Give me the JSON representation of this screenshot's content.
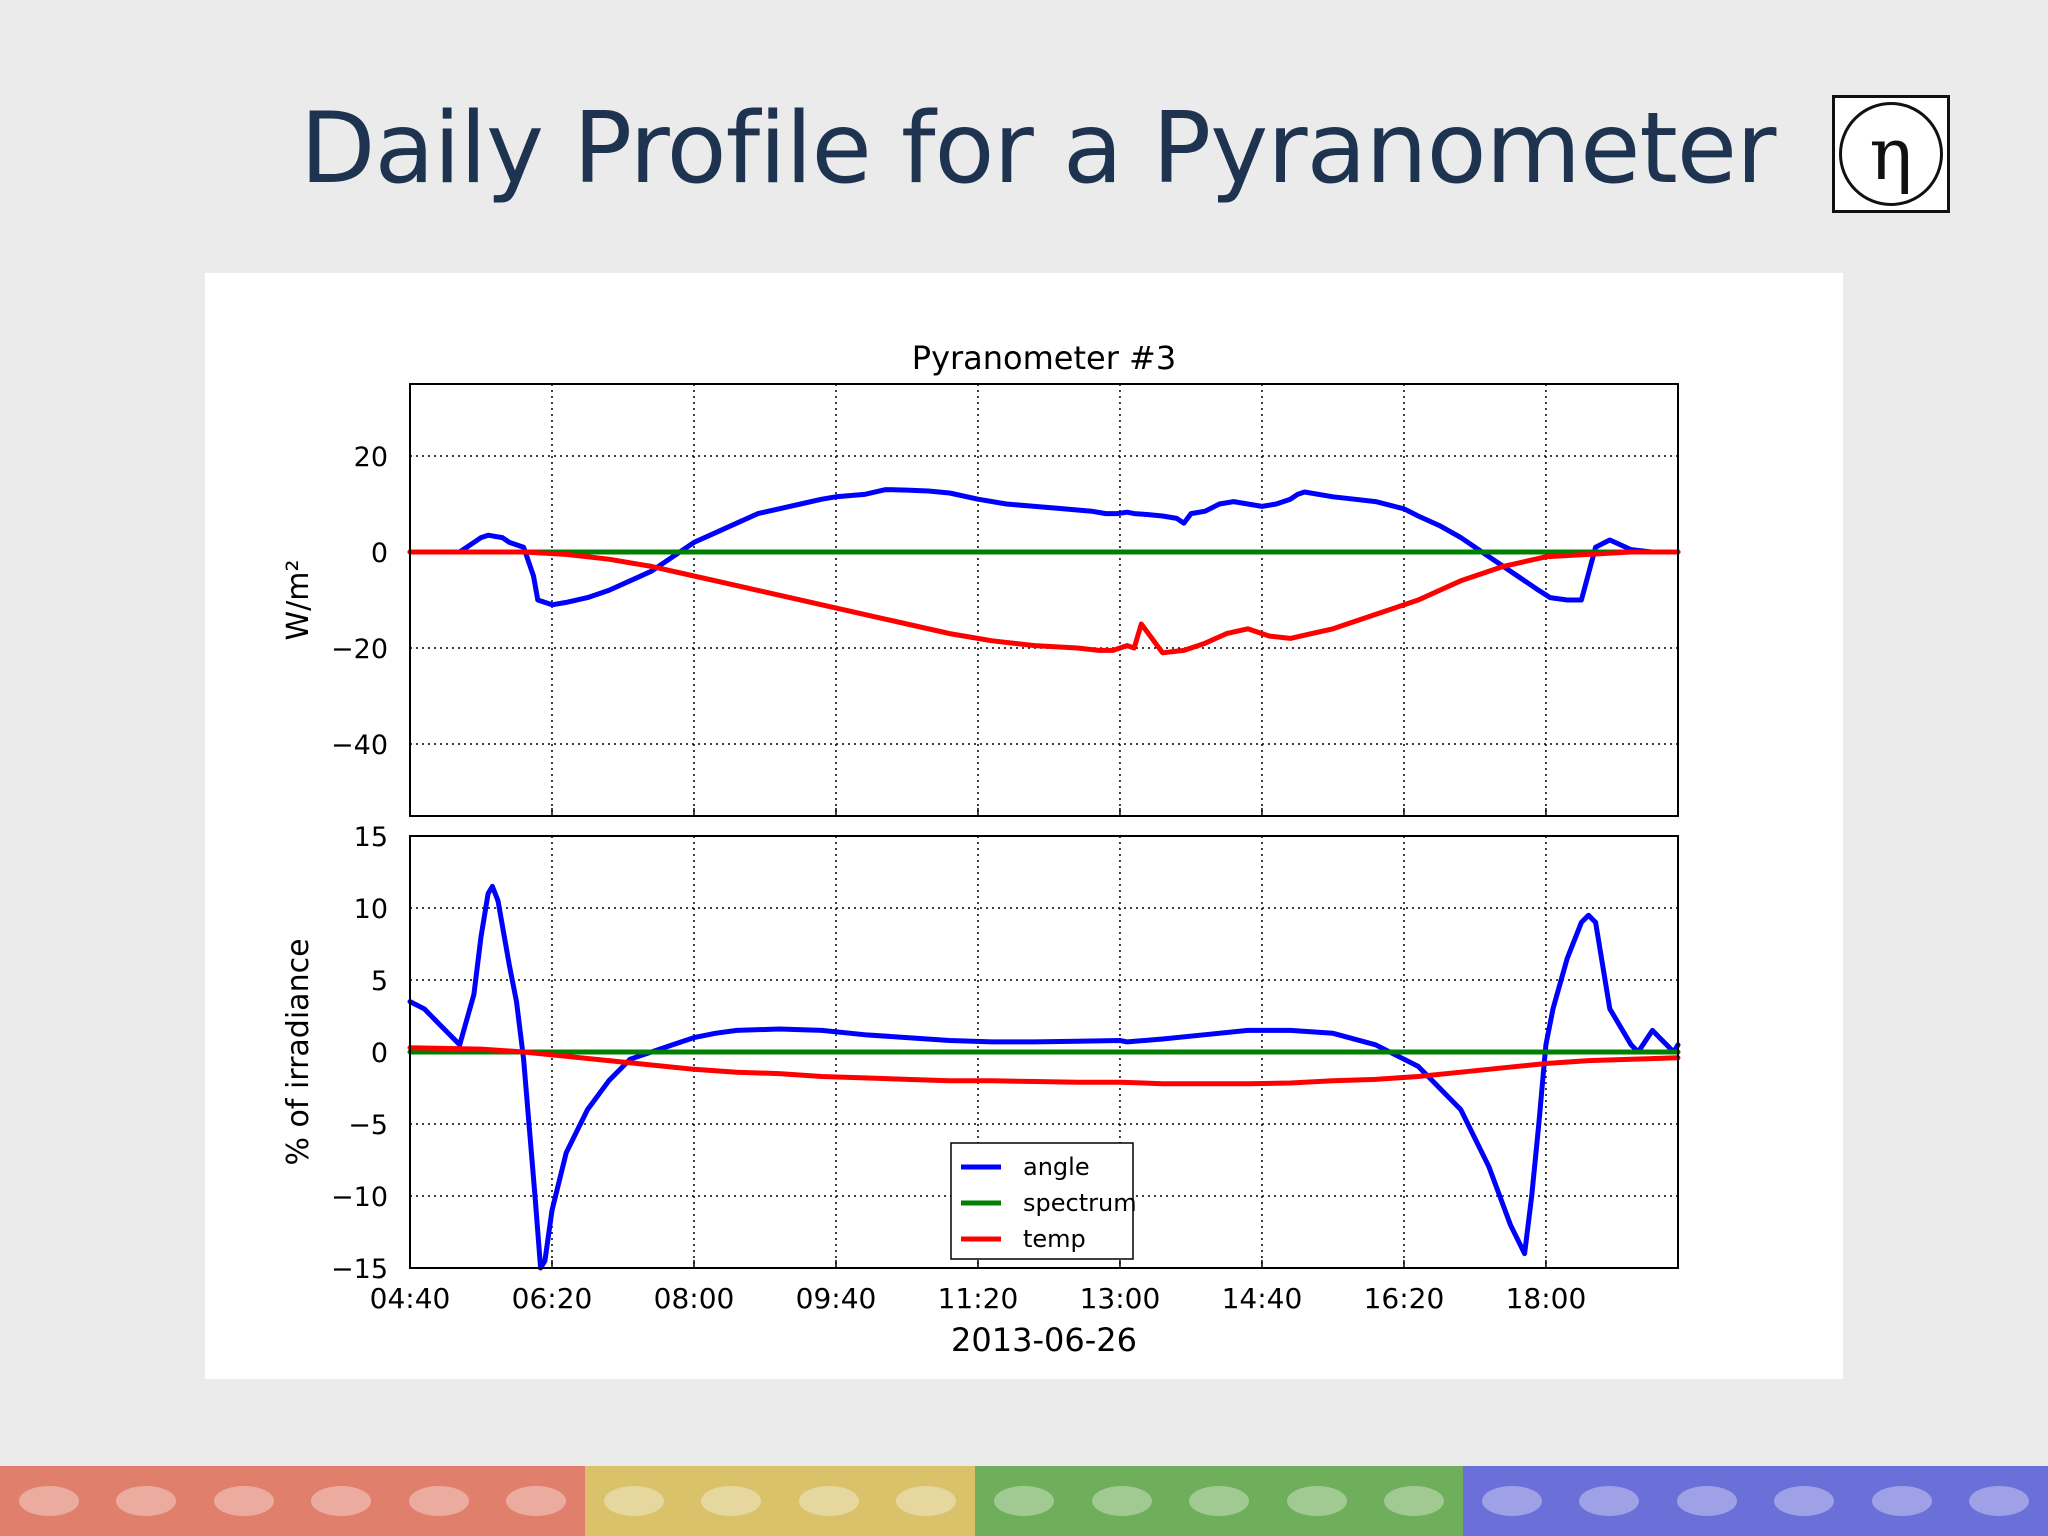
{
  "slide": {
    "title": "Daily Profile for a Pyranometer",
    "logo_glyph": "η"
  },
  "footer": {
    "segments": [
      {
        "color": "#e0806c",
        "count": 6
      },
      {
        "color": "#d9c26a",
        "count": 4
      },
      {
        "color": "#6fae5a",
        "count": 5
      },
      {
        "color": "#6b6fd8",
        "count": 6
      }
    ]
  },
  "colors": {
    "angle": "#0000ff",
    "spectrum": "#007f00",
    "temp": "#ff0000"
  },
  "chart_data": {
    "type": "line",
    "title": "Pyranometer #3",
    "xlabel": "2013-06-26",
    "x_ticks": [
      "04:40",
      "06:20",
      "08:00",
      "09:40",
      "11:20",
      "13:00",
      "14:40",
      "16:20",
      "18:00"
    ],
    "x_range": [
      "04:40",
      "19:33"
    ],
    "grid": true,
    "legend": {
      "placement": "lower-center",
      "entries": [
        "angle",
        "spectrum",
        "temp"
      ]
    },
    "panels": [
      {
        "ylabel": "W/m²",
        "y_ticks": [
          "20",
          "0",
          "−20",
          "−40"
        ],
        "y_tick_values": [
          20,
          0,
          -20,
          -40
        ],
        "ylim": [
          -55,
          35
        ],
        "series": [
          {
            "name": "angle",
            "x": [
              "04:40",
              "05:15",
              "05:20",
              "05:25",
              "05:30",
              "05:35",
              "05:45",
              "05:50",
              "06:00",
              "06:07",
              "06:10",
              "06:20",
              "06:30",
              "06:45",
              "07:00",
              "07:15",
              "07:30",
              "07:45",
              "08:00",
              "08:15",
              "08:30",
              "08:45",
              "09:00",
              "09:15",
              "09:30",
              "09:40",
              "10:00",
              "10:15",
              "10:30",
              "10:45",
              "11:00",
              "11:20",
              "11:40",
              "12:00",
              "12:20",
              "12:40",
              "12:50",
              "12:54",
              "12:58",
              "13:05",
              "13:10",
              "13:20",
              "13:30",
              "13:40",
              "13:45",
              "13:50",
              "14:00",
              "14:10",
              "14:20",
              "14:30",
              "14:40",
              "14:50",
              "15:00",
              "15:05",
              "15:10",
              "15:30",
              "15:45",
              "16:00",
              "16:20",
              "16:30",
              "16:45",
              "17:00",
              "17:20",
              "17:40",
              "17:55",
              "18:03",
              "18:15",
              "18:25",
              "18:35",
              "18:45",
              "19:00",
              "19:15",
              "19:33"
            ],
            "y": [
              0,
              0,
              1,
              2,
              3,
              3.5,
              3,
              2,
              1,
              -5,
              -10,
              -11,
              -10.5,
              -9.5,
              -8,
              -6,
              -4,
              -1,
              2,
              4,
              6,
              8,
              9,
              10,
              11,
              11.5,
              12,
              13,
              12.9,
              12.7,
              12.3,
              11,
              10,
              9.5,
              9,
              8.5,
              8,
              8,
              8,
              8.3,
              8,
              7.8,
              7.5,
              7,
              6,
              8,
              8.5,
              10,
              10.5,
              10,
              9.5,
              10,
              11,
              12,
              12.5,
              11.5,
              11,
              10.5,
              9,
              7.5,
              5.5,
              3,
              -1,
              -5,
              -8,
              -9.5,
              -10,
              -10,
              1,
              2.5,
              0.5,
              0,
              0
            ]
          },
          {
            "name": "spectrum",
            "x": [
              "04:40",
              "19:33"
            ],
            "y": [
              0,
              0
            ]
          },
          {
            "name": "temp",
            "x": [
              "04:40",
              "05:30",
              "06:00",
              "06:30",
              "07:00",
              "07:30",
              "08:00",
              "08:30",
              "09:00",
              "09:30",
              "10:00",
              "10:30",
              "11:00",
              "11:30",
              "12:00",
              "12:30",
              "12:45",
              "12:55",
              "13:00",
              "13:05",
              "13:10",
              "13:15",
              "13:30",
              "13:45",
              "14:00",
              "14:15",
              "14:30",
              "14:45",
              "15:00",
              "15:15",
              "15:30",
              "16:00",
              "16:30",
              "17:00",
              "17:30",
              "18:00",
              "18:30",
              "19:00",
              "19:33"
            ],
            "y": [
              0,
              0,
              0,
              -0.5,
              -1.5,
              -3,
              -5,
              -7,
              -9,
              -11,
              -13,
              -15,
              -17,
              -18.5,
              -19.5,
              -20,
              -20.5,
              -20.5,
              -20,
              -19.5,
              -20,
              -15,
              -21,
              -20.5,
              -19,
              -17,
              -16,
              -17.5,
              -18,
              -17,
              -16,
              -13,
              -10,
              -6,
              -3,
              -1,
              -0.5,
              0,
              0
            ]
          }
        ]
      },
      {
        "ylabel": "% of irradiance",
        "y_ticks": [
          "15",
          "10",
          "5",
          "0",
          "−5",
          "−10",
          "−15"
        ],
        "y_tick_values": [
          15,
          10,
          5,
          0,
          -5,
          -10,
          -15
        ],
        "ylim": [
          -15,
          15
        ],
        "series": [
          {
            "name": "angle",
            "x": [
              "04:40",
              "04:50",
              "05:00",
              "05:15",
              "05:25",
              "05:30",
              "05:35",
              "05:38",
              "05:42",
              "05:50",
              "05:55",
              "06:00",
              "06:08",
              "06:12",
              "06:15",
              "06:20",
              "06:30",
              "06:45",
              "07:00",
              "07:15",
              "07:30",
              "07:45",
              "08:00",
              "08:15",
              "08:30",
              "09:00",
              "09:30",
              "10:00",
              "10:30",
              "11:00",
              "11:30",
              "12:00",
              "12:30",
              "13:00",
              "13:05",
              "13:30",
              "14:00",
              "14:30",
              "14:40",
              "15:00",
              "15:30",
              "16:00",
              "16:20",
              "16:30",
              "16:40",
              "17:00",
              "17:20",
              "17:35",
              "17:45",
              "17:50",
              "17:55",
              "18:00",
              "18:05",
              "18:15",
              "18:25",
              "18:30",
              "18:35",
              "18:40",
              "18:45",
              "19:00",
              "19:05",
              "19:15",
              "19:30",
              "19:33"
            ],
            "y": [
              3.5,
              3,
              2,
              0.5,
              4,
              8,
              11,
              11.5,
              10.5,
              6,
              3.5,
              -0.5,
              -10,
              -15,
              -14.5,
              -11,
              -7,
              -4,
              -2,
              -0.5,
              0,
              0.5,
              1,
              1.3,
              1.5,
              1.6,
              1.5,
              1.2,
              1,
              0.8,
              0.7,
              0.7,
              0.75,
              0.8,
              0.7,
              0.9,
              1.2,
              1.5,
              1.5,
              1.5,
              1.3,
              0.5,
              -0.5,
              -1,
              -2,
              -4,
              -8,
              -12,
              -14,
              -10,
              -5,
              0.5,
              3,
              6.5,
              9,
              9.5,
              9,
              6,
              3,
              0.5,
              0,
              1.5,
              0,
              0.5
            ]
          },
          {
            "name": "spectrum",
            "x": [
              "04:40",
              "19:33"
            ],
            "y": [
              0,
              0
            ]
          },
          {
            "name": "temp",
            "x": [
              "04:40",
              "05:30",
              "06:00",
              "06:30",
              "07:00",
              "07:30",
              "08:00",
              "08:30",
              "09:00",
              "09:30",
              "10:00",
              "10:30",
              "11:00",
              "11:30",
              "12:00",
              "12:30",
              "13:00",
              "13:30",
              "14:00",
              "14:30",
              "15:00",
              "15:30",
              "16:00",
              "16:30",
              "17:00",
              "17:30",
              "18:00",
              "18:30",
              "19:00",
              "19:33"
            ],
            "y": [
              0.3,
              0.2,
              0,
              -0.3,
              -0.6,
              -0.9,
              -1.2,
              -1.4,
              -1.5,
              -1.7,
              -1.8,
              -1.9,
              -2.0,
              -2.0,
              -2.05,
              -2.1,
              -2.1,
              -2.2,
              -2.2,
              -2.2,
              -2.15,
              -2.0,
              -1.9,
              -1.7,
              -1.4,
              -1.1,
              -0.8,
              -0.6,
              -0.5,
              -0.4
            ]
          }
        ]
      }
    ]
  }
}
